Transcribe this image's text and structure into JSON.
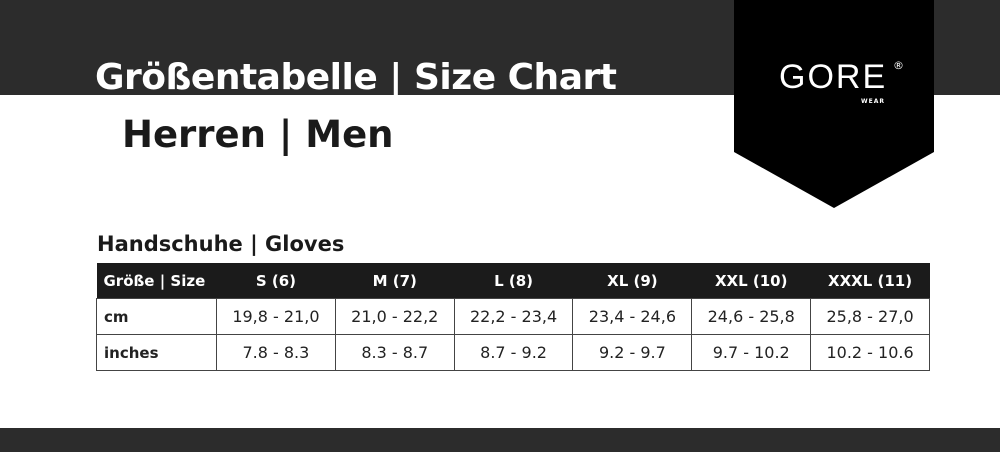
{
  "header": {
    "title": "Größentabelle | Size Chart",
    "subtitle": "Herren | Men"
  },
  "logo": {
    "brand": "GORE",
    "registered": "®",
    "sub": "WEAR"
  },
  "section_title": "Handschuhe | Gloves",
  "table": {
    "headers": [
      "Größe | Size",
      "S (6)",
      "M (7)",
      "L (8)",
      "XL  (9)",
      "XXL (10)",
      "XXXL  (11)"
    ],
    "rows": [
      [
        "cm",
        "19,8 - 21,0",
        "21,0 - 22,2",
        "22,2 - 23,4",
        "23,4 - 24,6",
        "24,6 - 25,8",
        "25,8 - 27,0"
      ],
      [
        "inches",
        "7.8 - 8.3",
        "8.3 - 8.7",
        "8.7 - 9.2",
        "9.2 - 9.7",
        "9.7 - 10.2",
        "10.2 - 10.6"
      ]
    ]
  },
  "colors": {
    "band": "#2c2c2c",
    "shield": "#000000",
    "table_header": "#1b1b1b"
  }
}
